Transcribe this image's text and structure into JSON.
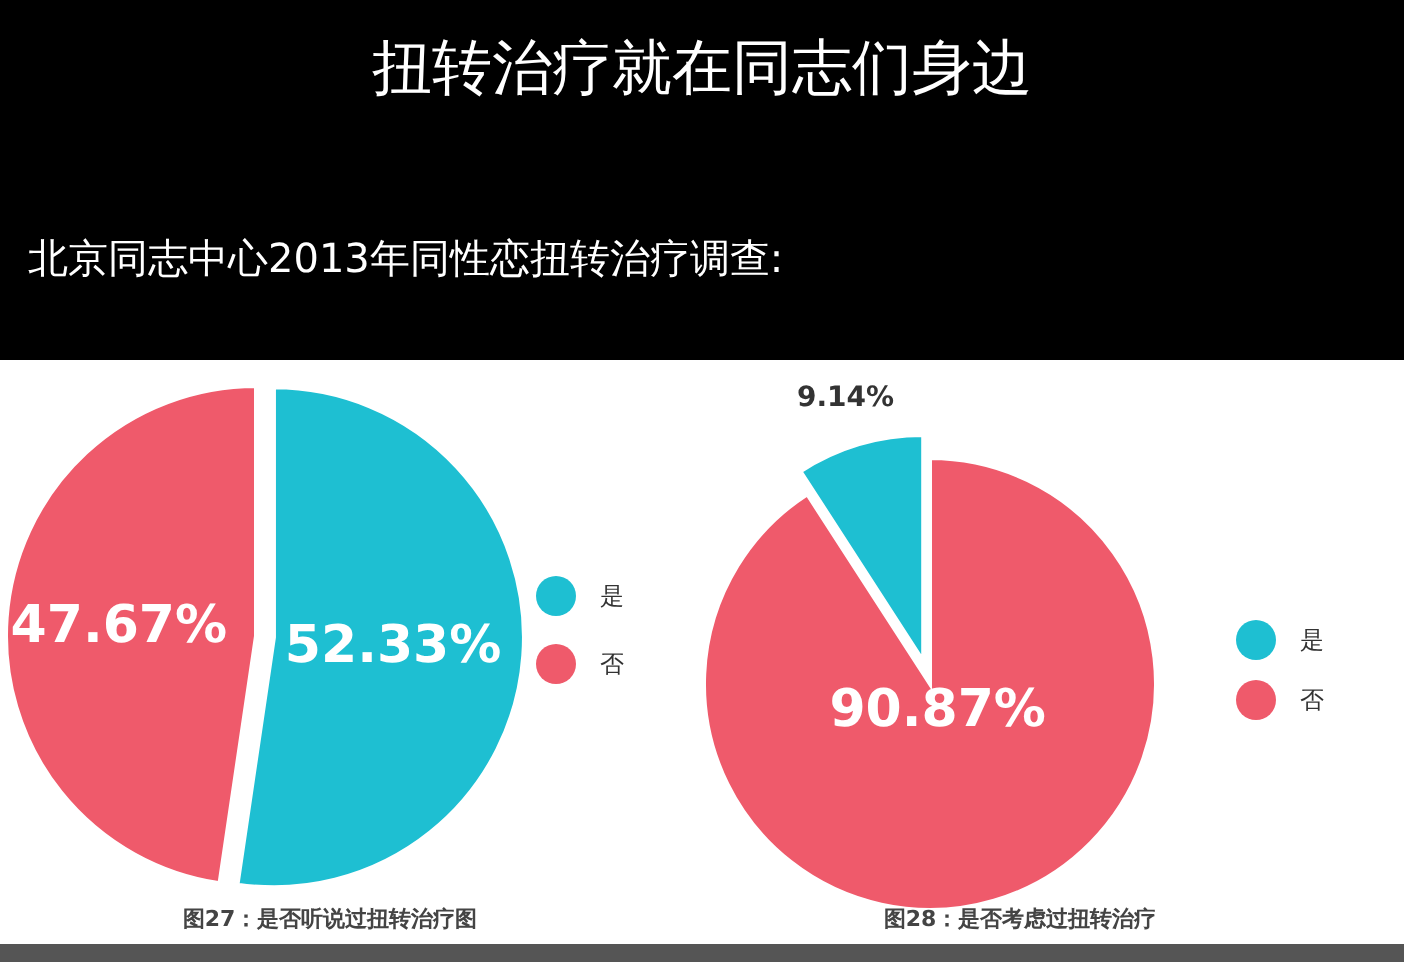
{
  "chart_data": [
    {
      "type": "other",
      "title": "扭转治疗就在同志们身边",
      "subtitle": "北京同志中心2013年同性恋扭转治疗调查:"
    },
    {
      "type": "pie",
      "categories": [
        "是",
        "否"
      ],
      "values": [
        52.33,
        47.67
      ],
      "colors": [
        "#1ebfd2",
        "#ef5a6b"
      ],
      "value_labels": [
        "52.33%",
        "47.67%"
      ],
      "legend": "right",
      "annotations": [
        "图27：是否听说过扭转治疗图"
      ]
    },
    {
      "type": "pie",
      "categories": [
        "是",
        "否"
      ],
      "values": [
        9.14,
        90.87
      ],
      "colors": [
        "#1ebfd2",
        "#ef5a6b"
      ],
      "value_labels": [
        "9.14%",
        "90.87%"
      ],
      "legend": "right",
      "annotations": [
        "图28：是否考虑过扭转治疗"
      ]
    }
  ]
}
